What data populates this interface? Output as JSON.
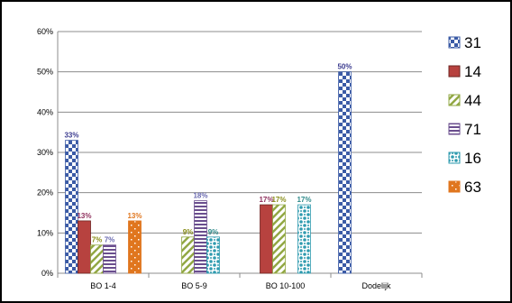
{
  "chart_data": {
    "type": "bar",
    "categories": [
      "BO 1-4",
      "BO 5-9",
      "BO 10-100",
      "Dodelijk"
    ],
    "ylim": [
      0,
      60
    ],
    "yticks": [
      0,
      10,
      20,
      30,
      40,
      50,
      60
    ],
    "ytick_labels": [
      "0%",
      "10%",
      "20%",
      "30%",
      "40%",
      "50%",
      "60%"
    ],
    "grid": true,
    "legend_position": "right",
    "series": [
      {
        "name": "31",
        "values": [
          33,
          null,
          null,
          50
        ],
        "labels": [
          "33%",
          "",
          "",
          "50%"
        ],
        "color": "#3B5BA6",
        "pattern": "checker"
      },
      {
        "name": "14",
        "values": [
          13,
          null,
          17,
          null
        ],
        "labels": [
          "13%",
          "",
          "17%",
          ""
        ],
        "color": "#B7423F",
        "pattern": "solid"
      },
      {
        "name": "44",
        "values": [
          7,
          9,
          17,
          null
        ],
        "labels": [
          "7%",
          "9%",
          "17%",
          ""
        ],
        "color": "#92A844",
        "pattern": "diagonal"
      },
      {
        "name": "71",
        "values": [
          7,
          18,
          null,
          null
        ],
        "labels": [
          "7%",
          "18%",
          "",
          ""
        ],
        "color": "#6A4E8E",
        "pattern": "horizontal"
      },
      {
        "name": "16",
        "values": [
          null,
          9,
          17,
          null
        ],
        "labels": [
          "",
          "9%",
          "17%",
          ""
        ],
        "color": "#2F9BAF",
        "pattern": "dots"
      },
      {
        "name": "63",
        "values": [
          13,
          null,
          null,
          null
        ],
        "labels": [
          "13%",
          "",
          "",
          ""
        ],
        "color": "#E0761E",
        "pattern": "sparkle"
      }
    ],
    "label_colors": [
      "#3B3B8F",
      "#8E2F5C",
      "#8A8F1C",
      "#6A6AB0",
      "#2F8A8A",
      "#E0761E"
    ]
  }
}
